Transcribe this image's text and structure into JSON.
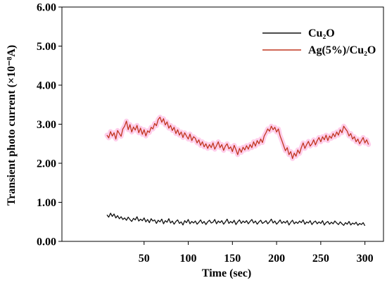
{
  "chart_data": {
    "type": "line",
    "xlabel": "Time (sec)",
    "ylabel": "Transient photo current (×10⁻⁸A)",
    "xlim": [
      -43,
      321
    ],
    "ylim": [
      0,
      6
    ],
    "x_ticks": [
      50,
      100,
      150,
      200,
      250,
      300
    ],
    "y_ticks": [
      0,
      1,
      2,
      3,
      4,
      5,
      6
    ],
    "y_tick_labels": [
      "0.00",
      "1.00",
      "2.00",
      "3.00",
      "4.00",
      "5.00",
      "6.00"
    ],
    "grid": false,
    "legend_position": "top-right",
    "x": [
      8,
      10,
      12,
      14,
      16,
      18,
      20,
      22,
      24,
      26,
      28,
      30,
      32,
      34,
      36,
      38,
      40,
      42,
      44,
      46,
      48,
      50,
      52,
      54,
      56,
      58,
      60,
      62,
      64,
      66,
      68,
      70,
      72,
      74,
      76,
      78,
      80,
      82,
      84,
      86,
      88,
      90,
      92,
      94,
      96,
      98,
      100,
      102,
      104,
      106,
      108,
      110,
      112,
      114,
      116,
      118,
      120,
      122,
      124,
      126,
      128,
      130,
      132,
      134,
      136,
      138,
      140,
      142,
      144,
      146,
      148,
      150,
      152,
      154,
      156,
      158,
      160,
      162,
      164,
      166,
      168,
      170,
      172,
      174,
      176,
      178,
      180,
      182,
      184,
      186,
      188,
      190,
      192,
      194,
      196,
      198,
      200,
      202,
      204,
      206,
      208,
      210,
      212,
      214,
      216,
      218,
      220,
      222,
      224,
      226,
      228,
      230,
      232,
      234,
      236,
      238,
      240,
      242,
      244,
      246,
      248,
      250,
      252,
      254,
      256,
      258,
      260,
      262,
      264,
      266,
      268,
      270,
      272,
      274,
      276,
      278,
      280,
      282,
      284,
      286,
      288,
      290,
      292,
      294,
      296,
      298,
      300,
      302,
      304
    ],
    "series": [
      {
        "name": "Cu₂O",
        "color": "#111111",
        "values": [
          0.68,
          0.62,
          0.72,
          0.64,
          0.7,
          0.6,
          0.66,
          0.58,
          0.63,
          0.56,
          0.6,
          0.54,
          0.62,
          0.56,
          0.51,
          0.59,
          0.55,
          0.63,
          0.52,
          0.57,
          0.53,
          0.6,
          0.5,
          0.56,
          0.48,
          0.58,
          0.52,
          0.55,
          0.46,
          0.54,
          0.5,
          0.57,
          0.45,
          0.53,
          0.49,
          0.58,
          0.47,
          0.52,
          0.44,
          0.51,
          0.55,
          0.46,
          0.5,
          0.42,
          0.53,
          0.48,
          0.56,
          0.45,
          0.51,
          0.47,
          0.52,
          0.44,
          0.49,
          0.55,
          0.46,
          0.51,
          0.43,
          0.5,
          0.54,
          0.47,
          0.49,
          0.56,
          0.45,
          0.52,
          0.48,
          0.53,
          0.44,
          0.5,
          0.57,
          0.46,
          0.51,
          0.47,
          0.54,
          0.43,
          0.5,
          0.55,
          0.46,
          0.52,
          0.48,
          0.53,
          0.45,
          0.51,
          0.56,
          0.47,
          0.52,
          0.44,
          0.5,
          0.54,
          0.46,
          0.49,
          0.53,
          0.45,
          0.5,
          0.57,
          0.47,
          0.52,
          0.44,
          0.49,
          0.55,
          0.46,
          0.51,
          0.47,
          0.53,
          0.42,
          0.49,
          0.54,
          0.45,
          0.5,
          0.46,
          0.52,
          0.48,
          0.55,
          0.44,
          0.5,
          0.47,
          0.53,
          0.43,
          0.49,
          0.52,
          0.45,
          0.5,
          0.46,
          0.53,
          0.42,
          0.48,
          0.51,
          0.44,
          0.49,
          0.45,
          0.52,
          0.47,
          0.43,
          0.5,
          0.45,
          0.41,
          0.48,
          0.44,
          0.51,
          0.42,
          0.47,
          0.44,
          0.49,
          0.41,
          0.46,
          0.43,
          0.48,
          0.4,
          null,
          null
        ]
      },
      {
        "name": "Ag(5%)/Cu₂O",
        "color": "#c0361f",
        "glow_color": "#ff4fb8",
        "values": [
          2.72,
          2.65,
          2.81,
          2.7,
          2.78,
          2.62,
          2.84,
          2.76,
          2.69,
          2.88,
          2.95,
          3.08,
          2.86,
          2.99,
          2.8,
          2.93,
          2.85,
          2.97,
          2.78,
          2.9,
          2.74,
          2.86,
          2.7,
          2.83,
          2.79,
          2.92,
          2.88,
          3.02,
          2.96,
          3.12,
          3.18,
          3.05,
          3.14,
          2.98,
          3.06,
          2.9,
          2.97,
          2.84,
          2.92,
          2.76,
          2.86,
          2.72,
          2.8,
          2.66,
          2.78,
          2.7,
          2.62,
          2.75,
          2.58,
          2.68,
          2.64,
          2.52,
          2.6,
          2.46,
          2.55,
          2.42,
          2.5,
          2.38,
          2.48,
          2.4,
          2.52,
          2.36,
          2.45,
          2.55,
          2.4,
          2.48,
          2.33,
          2.44,
          2.5,
          2.37,
          2.42,
          2.3,
          2.46,
          2.35,
          2.22,
          2.38,
          2.28,
          2.41,
          2.34,
          2.45,
          2.36,
          2.48,
          2.4,
          2.55,
          2.44,
          2.58,
          2.5,
          2.62,
          2.53,
          2.7,
          2.78,
          2.88,
          2.82,
          2.95,
          2.86,
          2.92,
          2.8,
          2.88,
          2.7,
          2.58,
          2.45,
          2.32,
          2.4,
          2.22,
          2.3,
          2.12,
          2.26,
          2.18,
          2.34,
          2.25,
          2.4,
          2.52,
          2.38,
          2.48,
          2.56,
          2.44,
          2.5,
          2.6,
          2.47,
          2.58,
          2.66,
          2.55,
          2.68,
          2.6,
          2.72,
          2.58,
          2.7,
          2.64,
          2.76,
          2.68,
          2.8,
          2.72,
          2.86,
          2.78,
          2.95,
          2.88,
          2.82,
          2.7,
          2.76,
          2.62,
          2.68,
          2.55,
          2.62,
          2.5,
          2.58,
          2.66,
          2.52,
          2.6,
          2.48
        ]
      }
    ]
  }
}
